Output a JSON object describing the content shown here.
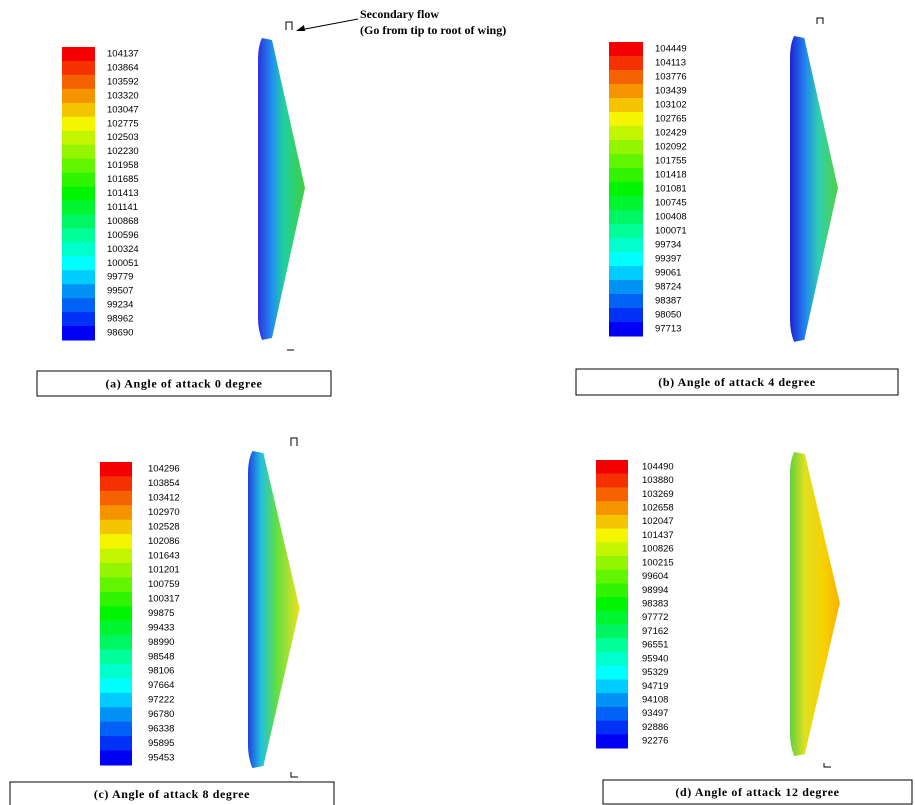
{
  "annotation": {
    "line1": "Secondary flow",
    "line2": "(Go from tip to root of wing)"
  },
  "panels": [
    {
      "caption": "(a) Angle of attack 0 degree",
      "legend": [
        104137,
        103864,
        103592,
        103320,
        103047,
        102775,
        102503,
        102230,
        101958,
        101685,
        101413,
        101141,
        100868,
        100596,
        100324,
        100051,
        99779,
        99507,
        99234,
        98962,
        98690
      ]
    },
    {
      "caption": "(b) Angle of attack 4 degree",
      "legend": [
        104449,
        104113,
        103776,
        103439,
        103102,
        102765,
        102429,
        102092,
        101755,
        101418,
        101081,
        100745,
        100408,
        100071,
        99734,
        99397,
        99061,
        98724,
        98387,
        98050,
        97713
      ]
    },
    {
      "caption": "(c) Angle of attack 8 degree",
      "legend": [
        104296,
        103854,
        103412,
        102970,
        102528,
        102086,
        101643,
        101201,
        100759,
        100317,
        99875,
        99433,
        98990,
        98548,
        98106,
        97664,
        97222,
        96780,
        96338,
        95895,
        95453
      ]
    },
    {
      "caption": "(d) Angle of attack 12 degree",
      "legend": [
        104490,
        103880,
        103269,
        102658,
        102047,
        101437,
        100826,
        100215,
        99604,
        98994,
        98383,
        97772,
        97162,
        96551,
        95940,
        95329,
        94719,
        94108,
        93497,
        92886,
        92276
      ]
    }
  ]
}
